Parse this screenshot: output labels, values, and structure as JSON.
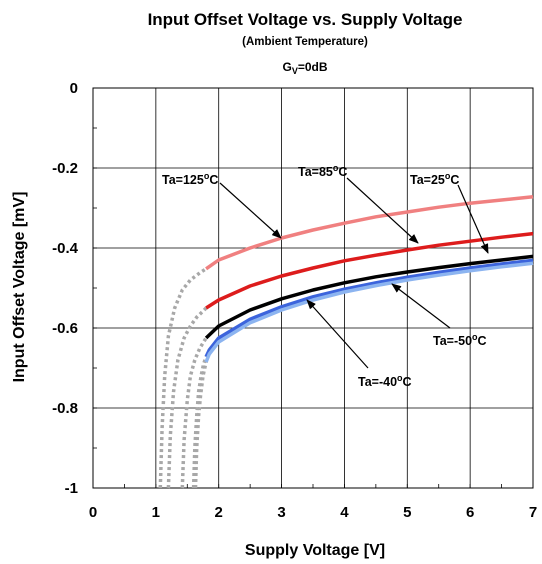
{
  "chart_data": {
    "type": "line",
    "title": "Input Offset Voltage vs. Supply Voltage",
    "subtitle": "(Ambient Temperature)",
    "condition": {
      "prefix": "G",
      "subscript": "V",
      "suffix": "=0dB"
    },
    "xlabel": "Supply Voltage [V]",
    "ylabel": "Input Offset Voltage [mV]",
    "xlim": [
      0,
      7
    ],
    "ylim": [
      -1,
      0
    ],
    "xticks": [
      0,
      1,
      2,
      3,
      4,
      5,
      6,
      7
    ],
    "xtick_labels": [
      "0",
      "1",
      "2",
      "3",
      "4",
      "5",
      "6",
      "7"
    ],
    "yticks": [
      0,
      -0.2,
      -0.4,
      -0.6,
      -0.8,
      -1
    ],
    "ytick_labels": [
      "0",
      "-0.2",
      "-0.4",
      "-0.6",
      "-0.8",
      "-1"
    ],
    "grid": true,
    "series": [
      {
        "name": "Ta=125°C",
        "color": "#f08080",
        "dotted_color": "#a8a8a8",
        "valid_from_x": 1.8,
        "x": [
          1.07,
          1.1,
          1.14,
          1.2,
          1.3,
          1.42,
          1.55,
          1.7,
          1.8,
          2.0,
          2.5,
          3.0,
          3.5,
          4.0,
          4.5,
          5.0,
          5.5,
          6.0,
          6.5,
          7.0
        ],
        "y": [
          -1.0,
          -0.85,
          -0.72,
          -0.62,
          -0.55,
          -0.505,
          -0.48,
          -0.462,
          -0.452,
          -0.43,
          -0.4,
          -0.375,
          -0.355,
          -0.338,
          -0.322,
          -0.31,
          -0.298,
          -0.288,
          -0.28,
          -0.272
        ]
      },
      {
        "name": "Ta=85°C",
        "color": "#dd1c1c",
        "dotted_color": "#a8a8a8",
        "valid_from_x": 1.8,
        "x": [
          1.2,
          1.23,
          1.28,
          1.35,
          1.45,
          1.55,
          1.65,
          1.75,
          1.8,
          2.0,
          2.5,
          3.0,
          3.5,
          4.0,
          4.5,
          5.0,
          5.5,
          6.0,
          6.5,
          7.0
        ],
        "y": [
          -1.0,
          -0.87,
          -0.76,
          -0.68,
          -0.625,
          -0.595,
          -0.573,
          -0.558,
          -0.55,
          -0.53,
          -0.495,
          -0.47,
          -0.45,
          -0.432,
          -0.418,
          -0.405,
          -0.393,
          -0.383,
          -0.373,
          -0.364
        ]
      },
      {
        "name": "Ta=25°C",
        "color": "#000000",
        "dotted_color": "#a8a8a8",
        "valid_from_x": 1.8,
        "x": [
          1.42,
          1.45,
          1.5,
          1.55,
          1.62,
          1.7,
          1.76,
          1.8,
          2.0,
          2.5,
          3.0,
          3.5,
          4.0,
          4.5,
          5.0,
          5.5,
          6.0,
          6.5,
          7.0
        ],
        "y": [
          -1.0,
          -0.88,
          -0.78,
          -0.72,
          -0.68,
          -0.65,
          -0.635,
          -0.625,
          -0.595,
          -0.555,
          -0.527,
          -0.505,
          -0.487,
          -0.472,
          -0.46,
          -0.449,
          -0.439,
          -0.43,
          -0.421
        ]
      },
      {
        "name": "Ta=-40°C",
        "color": "#3c64dc",
        "dotted_color": "#a8a8a8",
        "valid_from_x": 1.8,
        "x": [
          1.6,
          1.62,
          1.65,
          1.68,
          1.72,
          1.76,
          1.8,
          1.85,
          2.0,
          2.5,
          3.0,
          3.5,
          4.0,
          4.5,
          5.0,
          5.5,
          6.0,
          6.5,
          7.0
        ],
        "y": [
          -1.0,
          -0.9,
          -0.82,
          -0.76,
          -0.72,
          -0.69,
          -0.672,
          -0.655,
          -0.625,
          -0.578,
          -0.547,
          -0.522,
          -0.503,
          -0.487,
          -0.473,
          -0.461,
          -0.45,
          -0.44,
          -0.431
        ]
      },
      {
        "name": "Ta=-50°C",
        "color": "#8cb4f0",
        "dotted_color": "#a8a8a8",
        "valid_from_x": 1.8,
        "x": [
          1.63,
          1.65,
          1.68,
          1.71,
          1.75,
          1.8,
          1.85,
          2.0,
          2.5,
          3.0,
          3.5,
          4.0,
          4.5,
          5.0,
          5.5,
          6.0,
          6.5,
          7.0
        ],
        "y": [
          -1.0,
          -0.9,
          -0.82,
          -0.77,
          -0.72,
          -0.685,
          -0.665,
          -0.635,
          -0.587,
          -0.555,
          -0.53,
          -0.51,
          -0.494,
          -0.48,
          -0.468,
          -0.457,
          -0.447,
          -0.438
        ]
      }
    ],
    "annotations": [
      {
        "label": "Ta=125°C",
        "series": "Ta=125°C"
      },
      {
        "label": "Ta=85°C",
        "series": "Ta=85°C"
      },
      {
        "label": "Ta=25°C",
        "series": "Ta=25°C"
      },
      {
        "label": "Ta=-50°C",
        "series": "Ta=-50°C"
      },
      {
        "label": "Ta=-40°C",
        "series": "Ta=-40°C"
      }
    ]
  }
}
